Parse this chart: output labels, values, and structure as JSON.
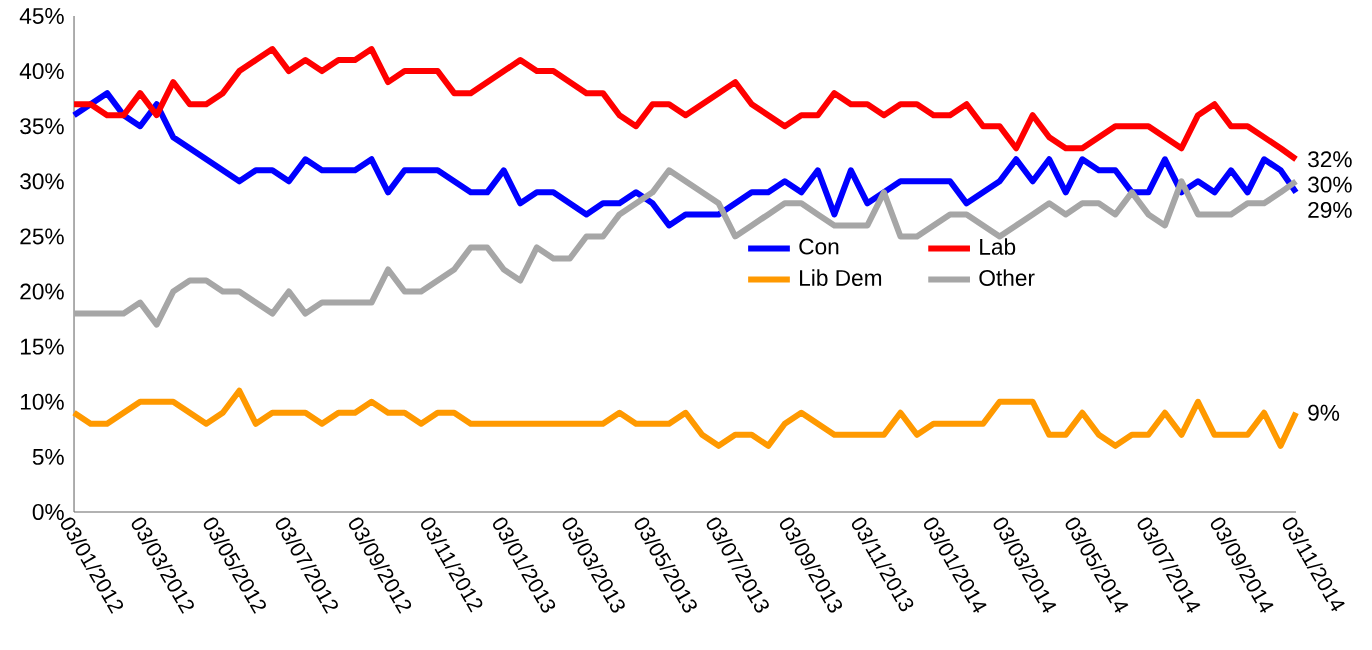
{
  "chart_data": {
    "type": "line",
    "x": [
      "2012-01-03",
      "2012-01-17",
      "2012-01-31",
      "2012-02-14",
      "2012-02-28",
      "2012-03-13",
      "2012-03-27",
      "2012-04-10",
      "2012-04-24",
      "2012-05-08",
      "2012-05-22",
      "2012-06-05",
      "2012-06-19",
      "2012-07-03",
      "2012-07-17",
      "2012-07-31",
      "2012-08-14",
      "2012-08-28",
      "2012-09-11",
      "2012-09-25",
      "2012-10-09",
      "2012-10-23",
      "2012-11-06",
      "2012-11-20",
      "2012-12-04",
      "2012-12-18",
      "2013-01-01",
      "2013-01-15",
      "2013-01-29",
      "2013-02-12",
      "2013-02-26",
      "2013-03-12",
      "2013-03-26",
      "2013-04-09",
      "2013-04-23",
      "2013-05-07",
      "2013-05-21",
      "2013-06-04",
      "2013-06-18",
      "2013-07-02",
      "2013-07-16",
      "2013-07-30",
      "2013-08-13",
      "2013-08-27",
      "2013-09-10",
      "2013-09-24",
      "2013-10-08",
      "2013-10-22",
      "2013-11-05",
      "2013-11-19",
      "2013-12-03",
      "2013-12-17",
      "2013-12-31",
      "2014-01-14",
      "2014-01-28",
      "2014-02-11",
      "2014-02-25",
      "2014-03-11",
      "2014-03-25",
      "2014-04-08",
      "2014-04-22",
      "2014-05-06",
      "2014-05-20",
      "2014-06-03",
      "2014-06-17",
      "2014-07-01",
      "2014-07-15",
      "2014-07-29",
      "2014-08-12",
      "2014-08-26",
      "2014-09-09",
      "2014-09-23",
      "2014-10-07",
      "2014-10-21",
      "2014-11-03"
    ],
    "series": [
      {
        "name": "Con",
        "color": "#0000ff",
        "values": [
          36,
          37,
          38,
          36,
          35,
          37,
          34,
          33,
          32,
          31,
          30,
          31,
          31,
          30,
          32,
          31,
          31,
          31,
          32,
          29,
          31,
          31,
          31,
          30,
          29,
          29,
          31,
          28,
          29,
          29,
          28,
          27,
          28,
          28,
          29,
          28,
          26,
          27,
          27,
          27,
          28,
          29,
          29,
          30,
          29,
          31,
          27,
          31,
          28,
          29,
          30,
          30,
          30,
          30,
          28,
          29,
          30,
          32,
          30,
          32,
          29,
          32,
          31,
          31,
          29,
          29,
          32,
          29,
          30,
          29,
          31,
          29,
          32,
          31,
          29
        ],
        "value_labels": [
          null,
          null,
          null,
          null,
          null,
          null,
          null,
          null,
          null,
          null,
          null,
          null,
          null,
          null,
          null,
          null,
          null,
          null,
          null,
          null,
          null,
          null,
          null,
          null,
          null,
          null,
          null,
          null,
          null,
          null,
          null,
          null,
          null,
          null,
          null,
          null,
          null,
          null,
          null,
          null,
          null,
          null,
          null,
          null,
          null,
          null,
          null,
          null,
          null,
          null,
          null,
          null,
          null,
          null,
          null,
          null,
          null,
          null,
          null,
          null,
          null,
          null,
          null,
          null,
          null,
          null,
          null,
          null,
          null,
          null,
          null,
          null,
          null,
          null,
          "29%"
        ]
      },
      {
        "name": "Lab",
        "color": "#ff0000",
        "values": [
          37,
          37,
          36,
          36,
          38,
          36,
          39,
          37,
          37,
          38,
          40,
          41,
          42,
          40,
          41,
          40,
          41,
          41,
          42,
          39,
          40,
          40,
          40,
          38,
          38,
          39,
          40,
          41,
          40,
          40,
          39,
          38,
          38,
          36,
          35,
          37,
          37,
          36,
          37,
          38,
          39,
          37,
          36,
          35,
          36,
          36,
          38,
          37,
          37,
          36,
          37,
          37,
          36,
          36,
          37,
          35,
          35,
          33,
          36,
          34,
          33,
          33,
          34,
          35,
          35,
          35,
          34,
          33,
          36,
          37,
          35,
          35,
          34,
          33,
          32
        ],
        "value_labels": [
          null,
          null,
          null,
          null,
          null,
          null,
          null,
          null,
          null,
          null,
          null,
          null,
          null,
          null,
          null,
          null,
          null,
          null,
          null,
          null,
          null,
          null,
          null,
          null,
          null,
          null,
          null,
          null,
          null,
          null,
          null,
          null,
          null,
          null,
          null,
          null,
          null,
          null,
          null,
          null,
          null,
          null,
          null,
          null,
          null,
          null,
          null,
          null,
          null,
          null,
          null,
          null,
          null,
          null,
          null,
          null,
          null,
          null,
          null,
          null,
          null,
          null,
          null,
          null,
          null,
          null,
          null,
          null,
          null,
          null,
          null,
          null,
          null,
          null,
          "32%"
        ]
      },
      {
        "name": "Lib Dem",
        "color": "#ff9900",
        "values": [
          9,
          8,
          8,
          9,
          10,
          10,
          10,
          9,
          8,
          9,
          11,
          8,
          9,
          9,
          9,
          8,
          9,
          9,
          10,
          9,
          9,
          8,
          9,
          9,
          8,
          8,
          8,
          8,
          8,
          8,
          8,
          8,
          8,
          9,
          8,
          8,
          8,
          9,
          7,
          6,
          7,
          7,
          6,
          8,
          9,
          8,
          7,
          7,
          7,
          7,
          9,
          7,
          8,
          8,
          8,
          8,
          10,
          10,
          10,
          7,
          7,
          9,
          7,
          6,
          7,
          7,
          9,
          7,
          10,
          7,
          7,
          7,
          9,
          6,
          9
        ],
        "value_labels": [
          null,
          null,
          null,
          null,
          null,
          null,
          null,
          null,
          null,
          null,
          null,
          null,
          null,
          null,
          null,
          null,
          null,
          null,
          null,
          null,
          null,
          null,
          null,
          null,
          null,
          null,
          null,
          null,
          null,
          null,
          null,
          null,
          null,
          null,
          null,
          null,
          null,
          null,
          null,
          null,
          null,
          null,
          null,
          null,
          null,
          null,
          null,
          null,
          null,
          null,
          null,
          null,
          null,
          null,
          null,
          null,
          null,
          null,
          null,
          null,
          null,
          null,
          null,
          null,
          null,
          null,
          null,
          null,
          null,
          null,
          null,
          null,
          null,
          null,
          "9%"
        ]
      },
      {
        "name": "Other",
        "color": "#a6a6a6",
        "values": [
          18,
          18,
          18,
          18,
          19,
          17,
          20,
          21,
          21,
          20,
          20,
          19,
          18,
          20,
          18,
          19,
          19,
          19,
          19,
          22,
          20,
          20,
          21,
          22,
          24,
          24,
          22,
          21,
          24,
          23,
          23,
          25,
          25,
          27,
          28,
          29,
          31,
          30,
          29,
          28,
          25,
          26,
          27,
          28,
          28,
          27,
          26,
          26,
          26,
          29,
          25,
          25,
          26,
          27,
          27,
          26,
          25,
          26,
          27,
          28,
          27,
          28,
          28,
          27,
          29,
          27,
          26,
          30,
          27,
          27,
          27,
          28,
          28,
          29,
          30
        ],
        "value_labels": [
          null,
          null,
          null,
          null,
          null,
          null,
          null,
          null,
          null,
          null,
          null,
          null,
          null,
          null,
          null,
          null,
          null,
          null,
          null,
          null,
          null,
          null,
          null,
          null,
          null,
          null,
          null,
          null,
          null,
          null,
          null,
          null,
          null,
          null,
          null,
          null,
          null,
          null,
          null,
          null,
          null,
          null,
          null,
          null,
          null,
          null,
          null,
          null,
          null,
          null,
          null,
          null,
          null,
          null,
          null,
          null,
          null,
          null,
          null,
          null,
          null,
          null,
          null,
          null,
          null,
          null,
          null,
          null,
          null,
          null,
          null,
          null,
          null,
          null,
          "30%"
        ]
      }
    ],
    "xlim": [
      "2012-01-03",
      "2014-11-03"
    ],
    "xticks": [
      {
        "value": "2012-01-03",
        "label": "03/01/2012"
      },
      {
        "value": "2012-03-03",
        "label": "03/03/2012"
      },
      {
        "value": "2012-05-03",
        "label": "03/05/2012"
      },
      {
        "value": "2012-07-03",
        "label": "03/07/2012"
      },
      {
        "value": "2012-09-03",
        "label": "03/09/2012"
      },
      {
        "value": "2012-11-03",
        "label": "03/11/2012"
      },
      {
        "value": "2013-01-03",
        "label": "03/01/2013"
      },
      {
        "value": "2013-03-03",
        "label": "03/03/2013"
      },
      {
        "value": "2013-05-03",
        "label": "03/05/2013"
      },
      {
        "value": "2013-07-03",
        "label": "03/07/2013"
      },
      {
        "value": "2013-09-03",
        "label": "03/09/2013"
      },
      {
        "value": "2013-11-03",
        "label": "03/11/2013"
      },
      {
        "value": "2014-01-03",
        "label": "03/01/2014"
      },
      {
        "value": "2014-03-03",
        "label": "03/03/2014"
      },
      {
        "value": "2014-05-03",
        "label": "03/05/2014"
      },
      {
        "value": "2014-07-03",
        "label": "03/07/2014"
      },
      {
        "value": "2014-09-03",
        "label": "03/09/2014"
      },
      {
        "value": "2014-11-03",
        "label": "03/11/2014"
      }
    ],
    "ylim": [
      0,
      45
    ],
    "yticks": [
      {
        "value": 0,
        "label": "0%"
      },
      {
        "value": 5,
        "label": "5%"
      },
      {
        "value": 10,
        "label": "10%"
      },
      {
        "value": 15,
        "label": "15%"
      },
      {
        "value": 20,
        "label": "20%"
      },
      {
        "value": 25,
        "label": "25%"
      },
      {
        "value": 30,
        "label": "30%"
      },
      {
        "value": 35,
        "label": "35%"
      },
      {
        "value": 40,
        "label": "40%"
      },
      {
        "value": 45,
        "label": "45%"
      }
    ],
    "grid": false,
    "legend": "right",
    "marker": "none",
    "line_style": "solid"
  }
}
